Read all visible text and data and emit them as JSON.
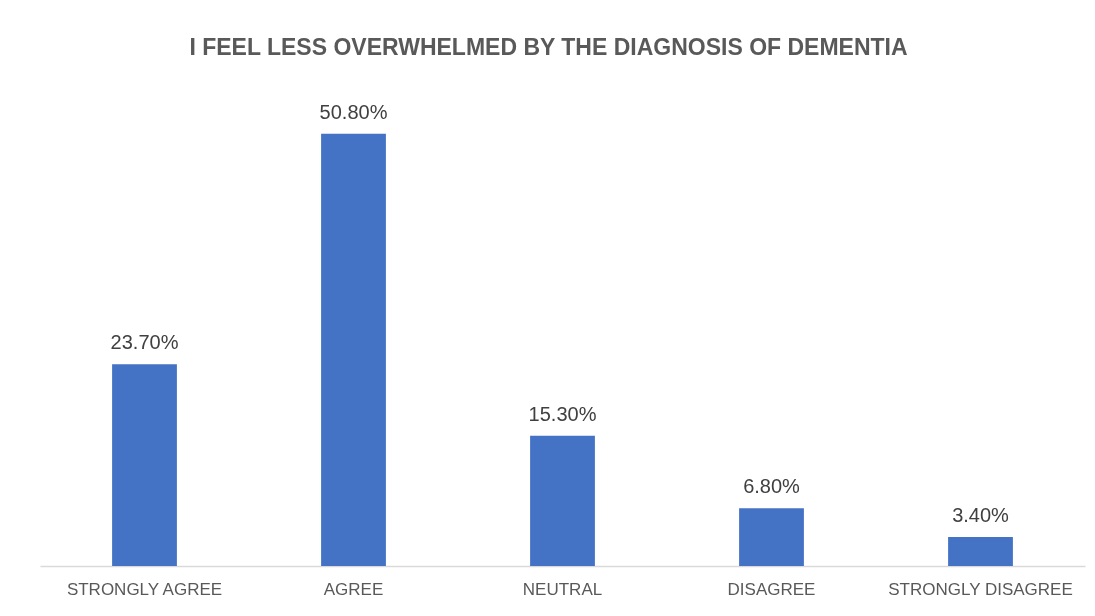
{
  "chart_data": {
    "type": "bar",
    "title": "I FEEL LESS OVERWHELMED BY THE DIAGNOSIS OF DEMENTIA",
    "categories": [
      "STRONGLY AGREE",
      "AGREE",
      "NEUTRAL",
      "DISAGREE",
      "STRONGLY DISAGREE"
    ],
    "values": [
      23.7,
      50.8,
      15.3,
      6.8,
      3.4
    ],
    "value_labels": [
      "23.70%",
      "50.80%",
      "15.30%",
      "6.80%",
      "3.40%"
    ],
    "color": "#4472c4",
    "tick_labels": "x"
  }
}
